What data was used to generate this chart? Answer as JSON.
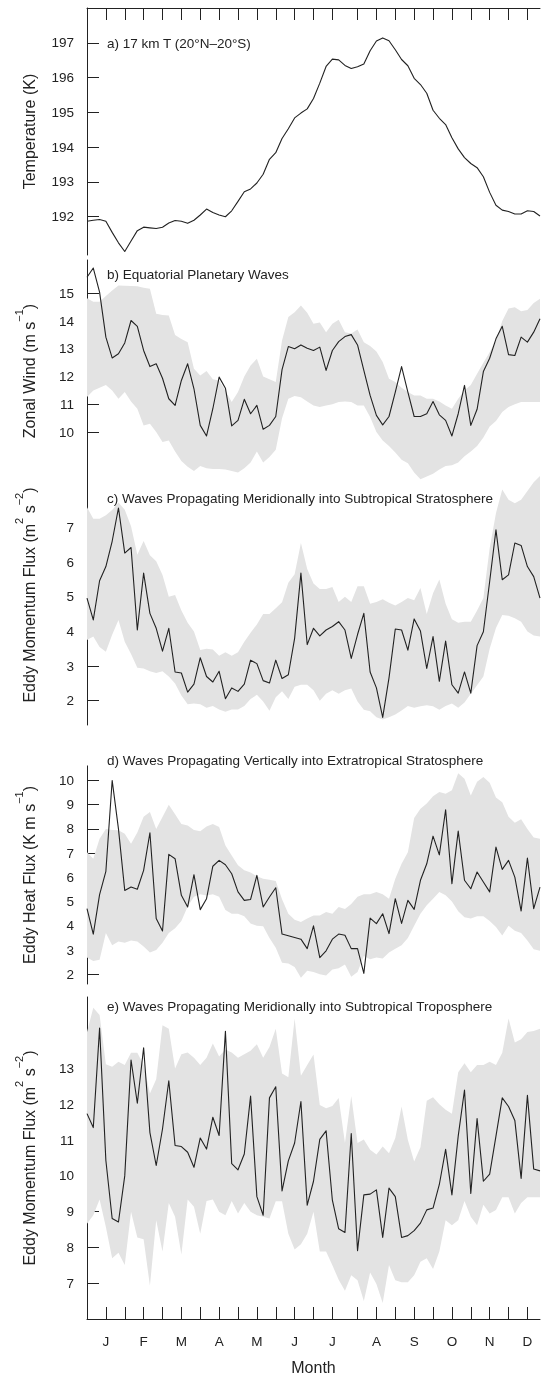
{
  "chart_data": [
    {
      "type": "line",
      "title": "a) 17 km T (20°N–20°S)",
      "ylabel": "Temperature (K)",
      "categories": [
        null,
        null,
        null,
        null,
        null,
        null,
        null,
        null,
        null,
        null,
        null,
        null,
        null,
        null,
        null,
        null,
        null,
        null,
        null,
        null,
        null,
        null,
        null,
        null,
        null,
        null,
        null,
        null,
        null,
        null,
        null,
        null,
        null,
        null,
        null,
        null,
        null,
        null,
        null,
        null,
        null,
        null,
        null,
        null,
        null,
        null,
        null,
        null,
        null,
        null,
        null,
        null,
        null,
        null,
        null,
        null,
        null,
        null,
        null,
        null,
        null,
        null,
        null,
        null,
        null,
        null,
        null,
        null,
        null,
        null,
        null,
        null,
        null
      ],
      "series": [
        {
          "color": "#222222",
          "values": [
            191.87,
            191.9,
            191.92,
            191.87,
            191.55,
            191.25,
            191.0,
            191.3,
            191.6,
            191.7,
            191.68,
            191.66,
            191.7,
            191.82,
            191.89,
            191.87,
            191.81,
            191.9,
            192.05,
            192.22,
            192.12,
            192.05,
            192.0,
            192.17,
            192.44,
            192.72,
            192.8,
            192.97,
            193.22,
            193.65,
            193.84,
            194.25,
            194.53,
            194.84,
            194.98,
            195.1,
            195.4,
            195.84,
            196.32,
            196.53,
            196.51,
            196.35,
            196.26,
            196.31,
            196.39,
            196.77,
            197.05,
            197.14,
            197.06,
            196.8,
            196.52,
            196.34,
            195.98,
            195.8,
            195.55,
            195.06,
            194.83,
            194.65,
            194.27,
            193.95,
            193.7,
            193.53,
            193.41,
            193.15,
            192.7,
            192.33,
            192.19,
            192.15,
            192.08,
            192.08,
            192.17,
            192.15,
            192.02
          ]
        }
      ],
      "ylim": [
        190.9,
        198
      ],
      "yticks": [
        192,
        193,
        194,
        195,
        196,
        197
      ]
    },
    {
      "type": "line",
      "title": "b) Equatorial Planetary Waves",
      "ylabel": "Zonal Wind (m s$^{−1}$)",
      "categories": [
        null,
        null,
        null,
        null,
        null,
        null,
        null,
        null,
        null,
        null,
        null,
        null,
        null,
        null,
        null,
        null,
        null,
        null,
        null,
        null,
        null,
        null,
        null,
        null,
        null,
        null,
        null,
        null,
        null,
        null,
        null,
        null,
        null,
        null,
        null,
        null,
        null,
        null,
        null,
        null,
        null,
        null,
        null,
        null,
        null,
        null,
        null,
        null,
        null,
        null,
        null,
        null,
        null,
        null,
        null,
        null,
        null,
        null,
        null,
        null,
        null,
        null,
        null,
        null,
        null,
        null,
        null,
        null,
        null,
        null,
        null,
        null,
        null
      ],
      "series": [
        {
          "color": "#222222",
          "values": [
            15.58,
            15.91,
            15.04,
            13.42,
            12.67,
            12.82,
            13.21,
            14.02,
            13.81,
            12.94,
            12.36,
            12.46,
            11.94,
            11.2,
            10.96,
            11.86,
            12.46,
            11.56,
            10.24,
            9.86,
            10.84,
            11.98,
            11.58,
            10.22,
            10.42,
            11.18,
            10.66,
            10.96,
            10.1,
            10.24,
            10.56,
            12.25,
            13.08,
            13.0,
            13.14,
            13.02,
            12.94,
            13.06,
            12.22,
            12.94,
            13.26,
            13.44,
            13.51,
            13.14,
            12.22,
            11.32,
            10.6,
            10.26,
            10.56,
            11.44,
            12.36,
            11.44,
            10.56,
            10.56,
            10.66,
            11.1,
            10.62,
            10.42,
            9.86,
            10.66,
            11.68,
            10.24,
            10.82,
            12.18,
            12.66,
            13.36,
            13.81,
            12.79,
            12.76,
            13.42,
            13.24,
            13.6,
            14.08
          ],
          "lower": [
            11.26,
            11.5,
            11.6,
            11.7,
            11.5,
            11.2,
            11.44,
            11.1,
            10.84,
            10.24,
            10.3,
            10.0,
            9.64,
            9.7,
            9.3,
            8.96,
            8.75,
            8.6,
            8.78,
            8.7,
            8.67,
            8.67,
            8.65,
            8.6,
            8.54,
            8.7,
            8.9,
            9.3,
            8.9,
            9.1,
            9.36,
            10.5,
            11.2,
            11.3,
            11.25,
            11.1,
            10.96,
            10.9,
            10.96,
            11.0,
            11.08,
            11.1,
            11.08,
            10.96,
            10.96,
            10.54,
            10.0,
            9.7,
            9.5,
            9.26,
            9.0,
            8.88,
            8.54,
            8.3,
            8.4,
            8.5,
            8.65,
            8.78,
            8.8,
            8.9,
            9.13,
            9.3,
            9.5,
            9.8,
            10.2,
            10.4,
            10.72,
            10.9,
            11.0,
            11.08,
            11.08,
            11.08,
            11.08
          ],
          "upper": [
            14.82,
            14.7,
            14.7,
            14.9,
            15.1,
            15.28,
            15.27,
            15.26,
            15.25,
            15.2,
            15.16,
            14.26,
            14.22,
            14.2,
            13.5,
            13.35,
            13.24,
            12.28,
            12.04,
            12.2,
            11.9,
            11.86,
            11.5,
            11.08,
            11.44,
            12.0,
            12.4,
            12.64,
            12.0,
            11.9,
            11.8,
            13.3,
            14.15,
            14.32,
            14.56,
            14.3,
            13.9,
            13.95,
            13.6,
            13.9,
            14.05,
            13.6,
            13.55,
            13.7,
            13.24,
            13.1,
            12.9,
            12.52,
            11.92,
            11.8,
            11.6,
            11.44,
            11.32,
            11.32,
            11.2,
            11.2,
            11.1,
            10.96,
            10.84,
            11.2,
            11.5,
            11.7,
            12.1,
            12.5,
            12.88,
            13.3,
            14.0,
            14.45,
            14.5,
            14.35,
            14.4,
            14.65,
            14.8
          ]
        }
      ],
      "ylim": [
        8.2,
        16.2
      ],
      "yticks": [
        10,
        11,
        12,
        13,
        14,
        15
      ]
    },
    {
      "type": "line",
      "title": "c) Waves Propagating Meridionally into Subtropical Stratosphere",
      "ylabel": "Eddy Momentum Flux (m$^{2}$ s$^{−2}$)",
      "categories": [
        null,
        null,
        null,
        null,
        null,
        null,
        null,
        null,
        null,
        null,
        null,
        null,
        null,
        null,
        null,
        null,
        null,
        null,
        null,
        null,
        null,
        null,
        null,
        null,
        null,
        null,
        null,
        null,
        null,
        null,
        null,
        null,
        null,
        null,
        null,
        null,
        null,
        null,
        null,
        null,
        null,
        null,
        null,
        null,
        null,
        null,
        null,
        null,
        null,
        null,
        null,
        null,
        null,
        null,
        null,
        null,
        null,
        null,
        null,
        null,
        null,
        null,
        null,
        null,
        null,
        null,
        null,
        null,
        null,
        null,
        null,
        null,
        null
      ],
      "series": [
        {
          "color": "#222222",
          "values": [
            4.96,
            4.33,
            5.46,
            5.87,
            6.6,
            7.56,
            6.26,
            6.42,
            4.04,
            5.68,
            4.52,
            4.09,
            3.43,
            4.09,
            2.83,
            2.8,
            2.25,
            2.48,
            3.24,
            2.7,
            2.54,
            2.85,
            2.06,
            2.37,
            2.27,
            2.48,
            3.17,
            3.07,
            2.58,
            2.51,
            3.17,
            2.64,
            2.75,
            3.8,
            5.68,
            3.62,
            4.09,
            3.87,
            4.04,
            4.14,
            4.28,
            4.04,
            3.22,
            3.91,
            4.52,
            2.83,
            2.37,
            1.52,
            2.66,
            4.07,
            4.04,
            3.46,
            4.36,
            4.01,
            2.93,
            3.85,
            2.56,
            3.72,
            2.46,
            2.22,
            2.83,
            2.22,
            3.59,
            3.99,
            5.44,
            6.93,
            5.49,
            5.63,
            6.55,
            6.48,
            5.87,
            5.58,
            4.96
          ],
          "lower": [
            3.75,
            3.85,
            3.55,
            3.41,
            3.9,
            4.33,
            3.7,
            3.35,
            2.95,
            2.93,
            2.85,
            2.8,
            2.85,
            2.7,
            2.5,
            2.15,
            1.9,
            1.92,
            1.9,
            1.8,
            1.85,
            1.75,
            1.68,
            1.75,
            1.75,
            1.85,
            2.05,
            2.17,
            1.98,
            1.71,
            2.1,
            2.27,
            2.05,
            2.4,
            2.46,
            2.46,
            2.3,
            2.0,
            2.2,
            2.3,
            2.2,
            2.3,
            2.35,
            1.98,
            1.74,
            1.7,
            1.52,
            1.46,
            1.52,
            1.6,
            1.72,
            1.85,
            1.8,
            1.84,
            1.87,
            1.84,
            1.74,
            1.85,
            1.92,
            1.8,
            1.95,
            2.2,
            2.45,
            2.7,
            3.5,
            4.1,
            4.47,
            4.45,
            4.38,
            4.28,
            4.0,
            3.88,
            3.85
          ],
          "upper": [
            7.58,
            7.25,
            7.25,
            7.35,
            7.5,
            7.72,
            7.51,
            7.03,
            6.21,
            6.61,
            6.2,
            6.02,
            5.63,
            5.0,
            5.05,
            4.6,
            4.25,
            4.0,
            3.46,
            3.5,
            3.48,
            3.3,
            3.4,
            3.3,
            3.4,
            3.7,
            3.96,
            4.2,
            4.5,
            4.5,
            4.67,
            4.84,
            5.4,
            5.65,
            6.55,
            5.8,
            5.38,
            5.22,
            5.22,
            5.28,
            4.85,
            5.0,
            4.85,
            5.3,
            5.3,
            4.8,
            4.85,
            4.93,
            4.83,
            4.75,
            4.85,
            4.96,
            4.9,
            5.25,
            4.5,
            5.1,
            5.5,
            4.8,
            4.35,
            4.25,
            4.28,
            4.28,
            4.6,
            4.96,
            6.4,
            7.41,
            8.09,
            7.8,
            7.7,
            7.8,
            8.05,
            8.3,
            8.48
          ]
        }
      ],
      "ylim": [
        1.3,
        8.8
      ],
      "yticks": [
        2,
        3,
        4,
        5,
        6,
        7
      ]
    },
    {
      "type": "line",
      "title": "d) Waves Propagating Vertically into Extratropical Stratosphere",
      "ylabel": "Eddy Heat Flux (K m s$^{−1}$)",
      "categories": [
        null,
        null,
        null,
        null,
        null,
        null,
        null,
        null,
        null,
        null,
        null,
        null,
        null,
        null,
        null,
        null,
        null,
        null,
        null,
        null,
        null,
        null,
        null,
        null,
        null,
        null,
        null,
        null,
        null,
        null,
        null,
        null,
        null,
        null,
        null,
        null,
        null,
        null,
        null,
        null,
        null,
        null,
        null,
        null,
        null,
        null,
        null,
        null,
        null,
        null,
        null,
        null,
        null,
        null,
        null,
        null,
        null,
        null,
        null,
        null,
        null,
        null,
        null,
        null,
        null,
        null,
        null,
        null,
        null,
        null,
        null,
        null,
        null
      ],
      "series": [
        {
          "color": "#222222",
          "values": [
            4.71,
            3.66,
            5.29,
            6.25,
            10.0,
            8.0,
            5.46,
            5.6,
            5.51,
            6.29,
            7.84,
            4.3,
            3.79,
            6.95,
            6.77,
            5.26,
            4.78,
            6.11,
            4.67,
            5.12,
            6.46,
            6.7,
            6.52,
            6.15,
            5.4,
            5.05,
            5.09,
            6.08,
            4.78,
            5.19,
            5.57,
            3.66,
            3.59,
            3.52,
            3.45,
            3.06,
            4.0,
            2.69,
            2.97,
            3.45,
            3.66,
            3.61,
            3.06,
            3.06,
            2.04,
            4.32,
            4.09,
            4.5,
            3.68,
            5.12,
            4.1,
            5.05,
            4.68,
            5.88,
            6.56,
            7.7,
            6.93,
            8.79,
            5.74,
            7.91,
            5.88,
            5.53,
            6.22,
            5.81,
            5.4,
            7.25,
            6.33,
            6.7,
            6.01,
            4.61,
            6.8,
            4.71,
            5.6
          ],
          "lower": [
            2.69,
            2.55,
            2.6,
            3.7,
            3.2,
            3.35,
            3.3,
            3.4,
            3.35,
            3.15,
            2.9,
            3.0,
            3.3,
            3.7,
            3.9,
            4.2,
            4.8,
            5.2,
            5.3,
            5.25,
            5.3,
            5.2,
            4.65,
            4.5,
            4.5,
            4.4,
            4.1,
            4.0,
            3.98,
            3.5,
            3.1,
            2.48,
            2.45,
            2.3,
            1.86,
            2.15,
            2.1,
            2.0,
            1.95,
            2.2,
            2.25,
            2.4,
            1.9,
            2.1,
            2.76,
            2.62,
            2.69,
            2.65,
            2.9,
            3.05,
            3.2,
            3.5,
            4.0,
            4.5,
            4.85,
            5.12,
            5.4,
            5.26,
            5.0,
            4.6,
            4.35,
            4.3,
            4.4,
            4.4,
            4.2,
            3.95,
            3.6,
            4.0,
            3.8,
            3.7,
            3.4,
            3.03,
            2.97
          ],
          "upper": [
            7.04,
            6.77,
            7.59,
            8.0,
            7.96,
            7.94,
            7.8,
            7.39,
            7.85,
            8.5,
            8.7,
            8.0,
            8.49,
            9.0,
            8.6,
            8.2,
            8.14,
            7.95,
            7.9,
            8.1,
            8.2,
            8.08,
            7.32,
            6.9,
            6.5,
            6.29,
            6.2,
            6.05,
            5.94,
            5.9,
            5.85,
            5.1,
            4.5,
            4.25,
            4.16,
            4.3,
            4.43,
            4.43,
            4.57,
            4.5,
            4.78,
            4.7,
            4.9,
            5.2,
            5.3,
            5.3,
            5.4,
            5.3,
            5.12,
            5.94,
            6.56,
            7.04,
            8.45,
            8.83,
            9.05,
            9.35,
            9.52,
            9.45,
            9.6,
            10.3,
            10.07,
            9.38,
            9.95,
            10.14,
            9.9,
            9.3,
            9.1,
            8.5,
            8.25,
            8.4,
            8.0,
            7.65,
            7.59
          ]
        }
      ],
      "ylim": [
        1.6,
        10.6
      ],
      "yticks": [
        2,
        3,
        4,
        5,
        6,
        7,
        8,
        9,
        10
      ]
    },
    {
      "type": "line",
      "title": "e) Waves Propagating Meridionally into Subtropical Troposphere",
      "xlabel": "Month",
      "ylabel": "Eddy Momentum Flux (m$^{2}$ s$^{−2}$)",
      "categories": [
        null,
        null,
        null,
        "J",
        null,
        null,
        null,
        null,
        null,
        "F",
        null,
        null,
        null,
        null,
        null,
        "M",
        null,
        null,
        null,
        null,
        null,
        "A",
        null,
        null,
        null,
        null,
        null,
        "M",
        null,
        null,
        null,
        null,
        null,
        "J",
        null,
        null,
        null,
        null,
        null,
        "J",
        null,
        null,
        null,
        null,
        null,
        null,
        "A",
        null,
        null,
        null,
        null,
        null,
        "S",
        null,
        null,
        null,
        null,
        null,
        "O",
        null,
        null,
        null,
        null,
        null,
        "N",
        null,
        null,
        null,
        null,
        null,
        "D",
        null,
        null
      ],
      "series": [
        {
          "color": "#222222",
          "values": [
            11.74,
            11.35,
            14.13,
            10.43,
            8.81,
            8.71,
            10.0,
            13.24,
            12.03,
            13.58,
            11.21,
            10.29,
            11.31,
            12.66,
            10.85,
            10.82,
            10.66,
            10.24,
            11.06,
            10.75,
            11.64,
            11.13,
            14.04,
            10.34,
            10.17,
            10.61,
            12.23,
            9.42,
            8.9,
            12.18,
            12.49,
            9.58,
            10.42,
            10.92,
            12.08,
            9.18,
            9.85,
            11.02,
            11.26,
            9.32,
            8.52,
            8.42,
            11.18,
            7.91,
            9.47,
            9.49,
            9.61,
            8.28,
            9.66,
            9.42,
            8.28,
            8.33,
            8.47,
            8.68,
            9.05,
            9.1,
            9.76,
            10.74,
            9.47,
            11.11,
            12.4,
            9.51,
            11.6,
            9.85,
            10.05,
            11.11,
            12.18,
            11.94,
            11.55,
            9.93,
            12.25,
            10.19,
            10.14
          ],
          "lower": [
            8.66,
            8.9,
            9.34,
            8.57,
            7.7,
            7.85,
            7.51,
            9.0,
            8.28,
            8.23,
            6.93,
            8.76,
            7.89,
            9.24,
            8.86,
            7.8,
            9.34,
            9.14,
            8.38,
            9.3,
            9.34,
            9.0,
            8.9,
            9.3,
            8.95,
            9.24,
            9.0,
            8.9,
            8.86,
            8.81,
            9.29,
            9.29,
            8.38,
            7.94,
            8.09,
            8.38,
            9.0,
            7.89,
            7.89,
            7.5,
            7.1,
            6.79,
            7.22,
            7.08,
            6.5,
            7.3,
            6.98,
            6.45,
            7.51,
            7.08,
            7.03,
            7.03,
            7.22,
            7.6,
            7.7,
            7.4,
            7.89,
            8.76,
            8.62,
            8.76,
            9.3,
            8.86,
            8.62,
            9.19,
            8.95,
            9.05,
            9.4,
            9.4,
            8.95,
            9.24,
            9.4,
            9.4,
            9.4
          ],
          "upper": [
            14.02,
            14.7,
            14.5,
            13.12,
            13.05,
            13.19,
            13.1,
            13.44,
            13.44,
            13.1,
            12.3,
            12.7,
            14.21,
            14.11,
            13.0,
            13.4,
            13.45,
            13.3,
            13.1,
            13.3,
            13.7,
            13.34,
            13.53,
            13.45,
            13.3,
            13.4,
            13.5,
            13.68,
            13.3,
            13.6,
            14.11,
            12.86,
            12.76,
            14.4,
            12.8,
            13.1,
            13.39,
            11.98,
            11.89,
            11.95,
            12.18,
            10.92,
            12.23,
            10.92,
            11.02,
            10.73,
            10.6,
            10.82,
            10.63,
            11.06,
            11.94,
            11.0,
            10.4,
            10.8,
            12.1,
            12.2,
            12.0,
            11.85,
            11.74,
            12.9,
            13.15,
            12.9,
            13.1,
            13.1,
            13.19,
            13.1,
            13.44,
            14.4,
            13.73,
            13.82,
            14.02,
            14.05,
            14.11
          ]
        }
      ],
      "ylim": [
        6,
        15
      ],
      "yticks": [
        7,
        8,
        9,
        10,
        11,
        12,
        13
      ]
    }
  ]
}
